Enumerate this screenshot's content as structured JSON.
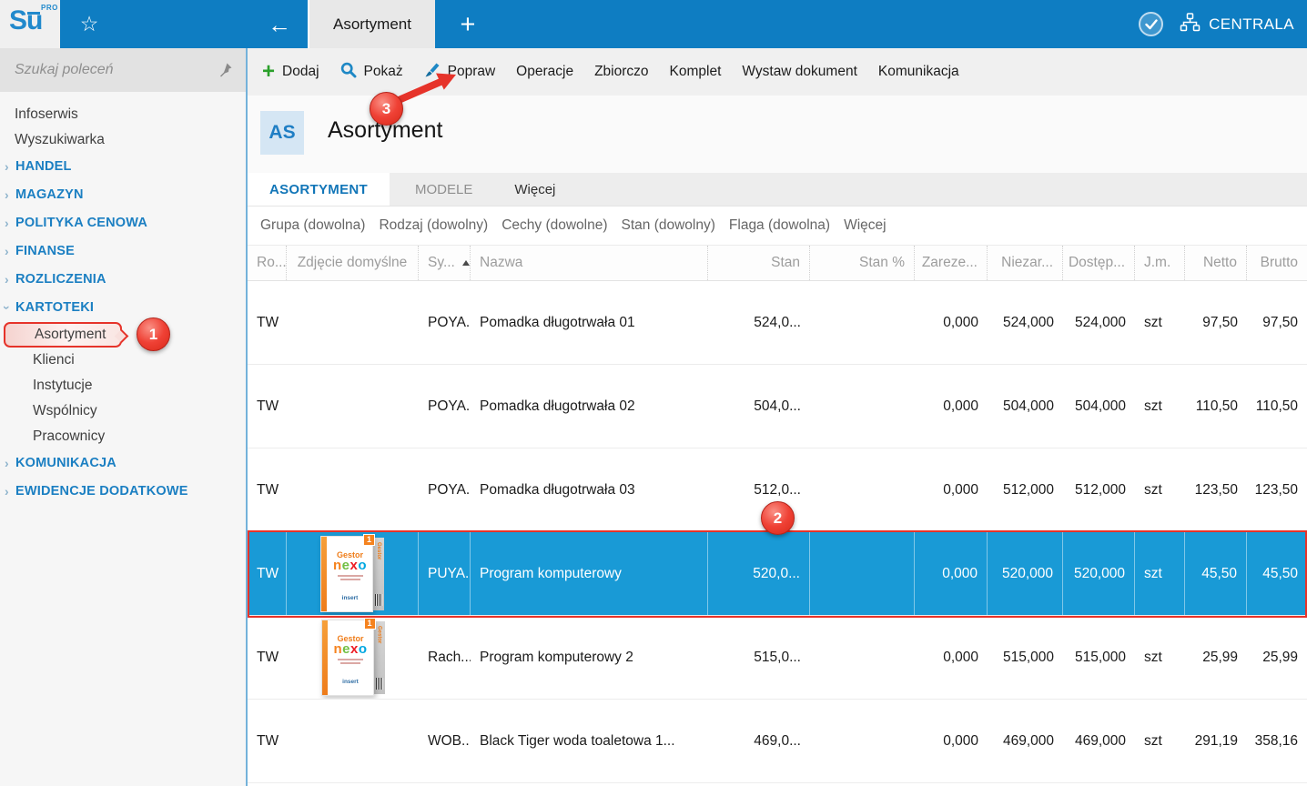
{
  "topbar": {
    "logo": "Su",
    "logo_sup": "PRO",
    "tab_title": "Asortyment",
    "company": "CENTRALA"
  },
  "sidebar": {
    "search_placeholder": "Szukaj poleceń",
    "menu": [
      {
        "label": "Infoserwis",
        "type": "item"
      },
      {
        "label": "Wyszukiwarka",
        "type": "item"
      },
      {
        "label": "HANDEL",
        "type": "section",
        "expanded": false
      },
      {
        "label": "MAGAZYN",
        "type": "section",
        "expanded": false
      },
      {
        "label": "POLITYKA CENOWA",
        "type": "section",
        "expanded": false
      },
      {
        "label": "FINANSE",
        "type": "section",
        "expanded": false
      },
      {
        "label": "ROZLICZENIA",
        "type": "section",
        "expanded": false
      },
      {
        "label": "KARTOTEKI",
        "type": "section",
        "expanded": true
      },
      {
        "label": "Asortyment",
        "type": "subitem",
        "highlighted": true
      },
      {
        "label": "Klienci",
        "type": "subitem"
      },
      {
        "label": "Instytucje",
        "type": "subitem"
      },
      {
        "label": "Wspólnicy",
        "type": "subitem"
      },
      {
        "label": "Pracownicy",
        "type": "subitem"
      },
      {
        "label": "KOMUNIKACJA",
        "type": "section",
        "expanded": false
      },
      {
        "label": "EWIDENCJE DODATKOWE",
        "type": "section",
        "expanded": false
      }
    ]
  },
  "toolbar": {
    "items": [
      {
        "id": "dodaj",
        "label": "Dodaj",
        "icon": "plus-icon"
      },
      {
        "id": "pokaz",
        "label": "Pokaż",
        "icon": "magnifier-icon"
      },
      {
        "id": "popraw",
        "label": "Popraw",
        "icon": "brush-icon"
      },
      {
        "id": "operacje",
        "label": "Operacje"
      },
      {
        "id": "zbiorczo",
        "label": "Zbiorczo"
      },
      {
        "id": "komplet",
        "label": "Komplet"
      },
      {
        "id": "wystaw-dokument",
        "label": "Wystaw dokument"
      },
      {
        "id": "komunikacja",
        "label": "Komunikacja"
      }
    ]
  },
  "page": {
    "badge": "AS",
    "title": "Asortyment"
  },
  "tabs": [
    {
      "label": "ASORTYMENT",
      "active": true
    },
    {
      "label": "MODELE",
      "active": false
    },
    {
      "label": "Więcej",
      "active": false
    }
  ],
  "filters": [
    "Grupa (dowolna)",
    "Rodzaj (dowolny)",
    "Cechy (dowolne)",
    "Stan (dowolny)",
    "Flaga (dowolna)",
    "Więcej"
  ],
  "table": {
    "columns": [
      {
        "key": "rodzaj",
        "label": "Ro..."
      },
      {
        "key": "photo",
        "label": "Zdjęcie domyślne"
      },
      {
        "key": "symbol",
        "label": "Sy...",
        "sorted": "asc"
      },
      {
        "key": "name",
        "label": "Nazwa"
      },
      {
        "key": "stan",
        "label": "Stan"
      },
      {
        "key": "stan_pct",
        "label": "Stan %"
      },
      {
        "key": "zarez",
        "label": "Zareze..."
      },
      {
        "key": "niezar",
        "label": "Niezar..."
      },
      {
        "key": "dostep",
        "label": "Dostęp..."
      },
      {
        "key": "jm",
        "label": "J.m."
      },
      {
        "key": "netto",
        "label": "Netto"
      },
      {
        "key": "brutto",
        "label": "Brutto"
      }
    ],
    "rows": [
      {
        "rodzaj": "TW",
        "photo": "",
        "symbol": "POYA...",
        "name": "Pomadka długotrwała 01",
        "stan": "524,0...",
        "stan_pct": "",
        "zarez": "0,000",
        "niezar": "524,000",
        "dostep": "524,000",
        "jm": "szt",
        "netto": "97,50",
        "brutto": "97,50",
        "selected": false
      },
      {
        "rodzaj": "TW",
        "photo": "",
        "symbol": "POYA...",
        "name": "Pomadka długotrwała 02",
        "stan": "504,0...",
        "stan_pct": "",
        "zarez": "0,000",
        "niezar": "504,000",
        "dostep": "504,000",
        "jm": "szt",
        "netto": "110,50",
        "brutto": "110,50",
        "selected": false
      },
      {
        "rodzaj": "TW",
        "photo": "",
        "symbol": "POYA...",
        "name": "Pomadka długotrwała 03",
        "stan": "512,0...",
        "stan_pct": "",
        "zarez": "0,000",
        "niezar": "512,000",
        "dostep": "512,000",
        "jm": "szt",
        "netto": "123,50",
        "brutto": "123,50",
        "selected": false
      },
      {
        "rodzaj": "TW",
        "photo": "gestor-nexo",
        "symbol": "PUYA...",
        "name": "Program komputerowy",
        "stan": "520,0...",
        "stan_pct": "",
        "zarez": "0,000",
        "niezar": "520,000",
        "dostep": "520,000",
        "jm": "szt",
        "netto": "45,50",
        "brutto": "45,50",
        "selected": true
      },
      {
        "rodzaj": "TW",
        "photo": "gestor-nexo",
        "symbol": "Rach...",
        "name": "Program komputerowy 2",
        "stan": "515,0...",
        "stan_pct": "",
        "zarez": "0,000",
        "niezar": "515,000",
        "dostep": "515,000",
        "jm": "szt",
        "netto": "25,99",
        "brutto": "25,99",
        "selected": false
      },
      {
        "rodzaj": "TW",
        "photo": "",
        "symbol": "WOB...",
        "name": "Black Tiger woda toaletowa 1...",
        "stan": "469,0...",
        "stan_pct": "",
        "zarez": "0,000",
        "niezar": "469,000",
        "dostep": "469,000",
        "jm": "szt",
        "netto": "291,19",
        "brutto": "358,16",
        "selected": false
      }
    ]
  },
  "product_box": {
    "badge": "1",
    "brand": "Gestor",
    "name_letters": [
      "n",
      "e",
      "x",
      "o"
    ],
    "publisher": "insert",
    "side_text": "Gestor"
  },
  "annotations": {
    "step1": "1",
    "step2": "2",
    "step3": "3"
  },
  "colors": {
    "topbar_blue": "#0e7dc2",
    "selection_blue": "#199ad6",
    "annotation_red": "#e6332a",
    "link_blue": "#1b7fc2",
    "add_green": "#2ba02b"
  }
}
